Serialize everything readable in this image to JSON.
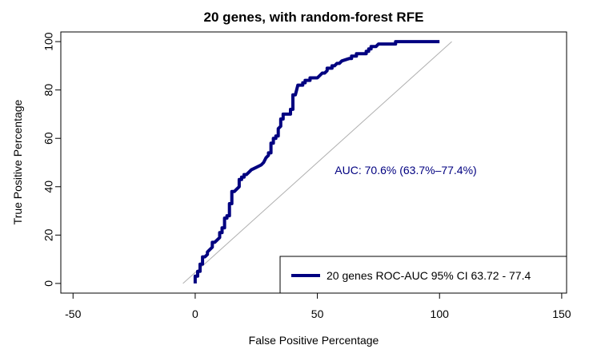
{
  "chart_data": {
    "type": "line",
    "title": "20 genes, with random-forest RFE",
    "xlabel": "False Positive Percentage",
    "ylabel": "True Positive Percentage",
    "xlim": [
      -55,
      152
    ],
    "ylim": [
      -4,
      104
    ],
    "x_ticks": [
      "-50",
      "0",
      "50",
      "100",
      "150"
    ],
    "y_ticks": [
      "0",
      "20",
      "40",
      "60",
      "80",
      "100"
    ],
    "grid": false,
    "annotation": "AUC: 70.6% (63.7%–77.4%)",
    "colors": {
      "roc": "#000080",
      "diagonal": "#b0b0b0"
    },
    "legend": {
      "position": "bottom-right",
      "entries": [
        {
          "label": "20 genes ROC-AUC 95% CI  63.72 - 77.4"
        }
      ]
    },
    "diagonal": {
      "x": [
        -5,
        105
      ],
      "y": [
        0,
        100
      ]
    },
    "series": [
      {
        "x": [
          0,
          0,
          1,
          1,
          2,
          2,
          3,
          3,
          4,
          5,
          5,
          6,
          7,
          7,
          8,
          9,
          9,
          10,
          10,
          11,
          11,
          12,
          12,
          13,
          13,
          14,
          14,
          15,
          15,
          16,
          17,
          17,
          18,
          18,
          19,
          19,
          20,
          20,
          21,
          22,
          22,
          23,
          25,
          27,
          28,
          29,
          30,
          30,
          31,
          31,
          32,
          32,
          33,
          33,
          34,
          34,
          35,
          35,
          36,
          36,
          37,
          37,
          38,
          39,
          39,
          40,
          40,
          41,
          42,
          43,
          44,
          44,
          45,
          45,
          47,
          47,
          48,
          48,
          50,
          52,
          53,
          54,
          54,
          56,
          56,
          57,
          58,
          59,
          60,
          60,
          63,
          64,
          64,
          66,
          66,
          70,
          70,
          71,
          71,
          72,
          72,
          74,
          75,
          77,
          80,
          82,
          82,
          88,
          95,
          100
        ],
        "y": [
          0,
          3,
          3,
          5,
          5,
          8,
          8,
          11,
          11,
          12,
          13,
          14,
          15,
          17,
          17,
          18,
          18,
          19,
          21,
          21,
          23,
          23,
          27,
          27,
          28,
          28,
          33,
          33,
          38,
          38,
          39,
          39,
          40,
          43,
          43,
          44,
          44,
          45,
          45,
          46,
          46,
          47,
          48,
          49,
          50,
          52,
          53,
          54,
          54,
          58,
          58,
          60,
          60,
          61,
          61,
          64,
          65,
          68,
          68,
          70,
          70,
          70,
          70,
          70,
          72,
          72,
          78,
          78,
          82,
          82,
          82,
          83,
          83,
          84,
          84,
          85,
          85,
          85,
          85,
          87,
          87,
          88,
          89,
          89,
          90,
          90,
          91,
          91,
          92,
          92,
          93,
          93,
          94,
          94,
          95,
          95,
          96,
          96,
          97,
          97,
          98,
          98,
          99,
          99,
          99,
          99,
          100,
          100,
          100,
          100
        ]
      }
    ]
  }
}
